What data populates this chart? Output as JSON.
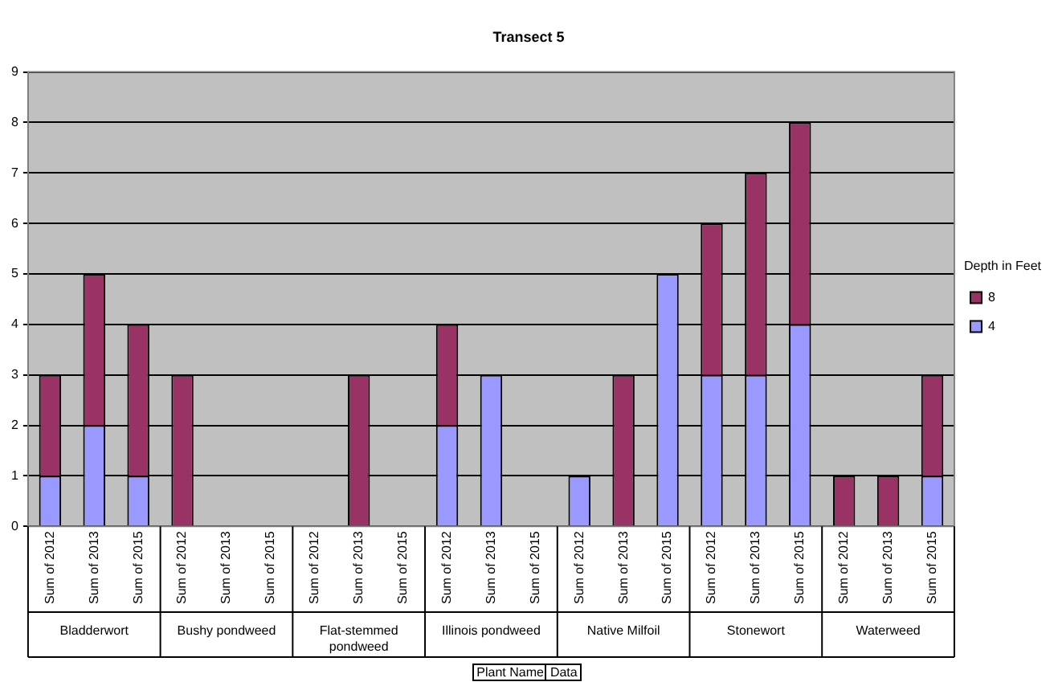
{
  "chart_data": {
    "type": "bar",
    "title": "Transect 5",
    "stacked": true,
    "categories": [
      "Sum of 2012",
      "Sum of 2013",
      "Sum of 2015",
      "Sum of 2012",
      "Sum of 2013",
      "Sum of 2015",
      "Sum of 2012",
      "Sum of 2013",
      "Sum of 2015",
      "Sum of 2012",
      "Sum of 2013",
      "Sum of 2015",
      "Sum of 2012",
      "Sum of 2013",
      "Sum of 2015",
      "Sum of 2012",
      "Sum of 2013",
      "Sum of 2015",
      "Sum of 2012",
      "Sum of 2013",
      "Sum of 2015"
    ],
    "series": [
      {
        "name": "4",
        "color": "#9999ff",
        "values": [
          1,
          2,
          1,
          0,
          0,
          0,
          0,
          0,
          0,
          2,
          3,
          0,
          1,
          0,
          5,
          3,
          3,
          4,
          0,
          0,
          1
        ]
      },
      {
        "name": "8",
        "color": "#993366",
        "values": [
          2,
          3,
          3,
          3,
          0,
          0,
          0,
          3,
          0,
          2,
          0,
          0,
          0,
          3,
          0,
          3,
          4,
          4,
          1,
          1,
          2
        ]
      }
    ],
    "ylim": [
      0,
      9
    ],
    "yticks": [
      0,
      1,
      2,
      3,
      4,
      5,
      6,
      7,
      8,
      9
    ],
    "grid": "y",
    "legend": "right",
    "legend_title": "Depth in Feet",
    "xlabel": "Plant Name",
    "annotations": [
      "Bladderwort",
      "Bushy pondweed",
      "Flat-stemmed pondweed",
      "Illinois pondweed",
      "Native Milfoil",
      "Stonewort",
      "Waterweed",
      "Data"
    ]
  }
}
